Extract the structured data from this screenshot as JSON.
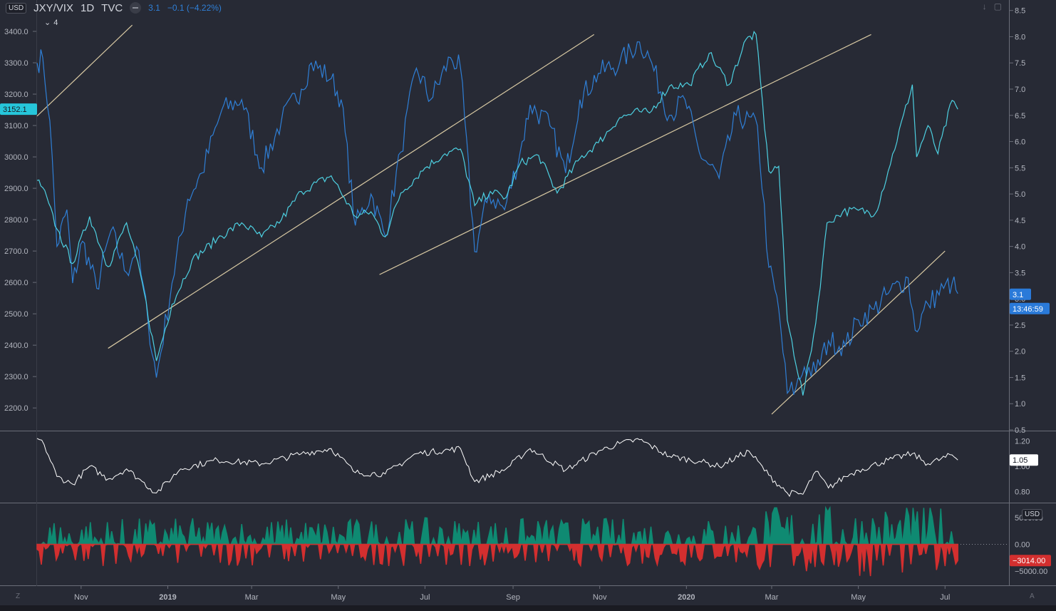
{
  "header": {
    "currency_badge": "USD",
    "symbol": "JXY/VIX",
    "interval": "1D",
    "source": "TVC",
    "last_value": "3.1",
    "change": "−0.1 (−4.22%)",
    "collapse_count": "4"
  },
  "bottom_badge": "USD",
  "corner_left": "Z",
  "corner_right": "A",
  "colors": {
    "background": "#272a35",
    "ratio_line": "#2f7fd6",
    "index_line": "#4dd0e1",
    "trendline": "#d8c9a3",
    "osc_line": "#ffffff",
    "hist_pos": "#0f8a72",
    "hist_neg": "#d32f2f",
    "last_price_tag": "#26c6da",
    "value_tag": "#2a7ad9",
    "neg_tag": "#d32f2f"
  },
  "chart_data": [
    {
      "type": "line",
      "title": "JXY/VIX",
      "x_ticks": [
        "Nov",
        "2019",
        "Mar",
        "May",
        "Jul",
        "Sep",
        "Nov",
        "2020",
        "Mar",
        "May",
        "Jul"
      ],
      "x_range": [
        "2018-10-01",
        "2020-08-15"
      ],
      "left_axis": {
        "ticks": [
          2200,
          2300,
          2400,
          2500,
          2600,
          2700,
          2800,
          2900,
          3000,
          3100,
          3200,
          3300,
          3400
        ],
        "range": [
          2130,
          3500
        ]
      },
      "right_axis": {
        "ticks": [
          0.5,
          1.0,
          1.5,
          2.0,
          2.5,
          3.0,
          3.5,
          4.0,
          4.5,
          5.0,
          5.5,
          6.0,
          6.5,
          7.0,
          7.5,
          8.0,
          8.5
        ],
        "range": [
          0.5,
          8.7
        ]
      },
      "series": [
        {
          "axis": "right",
          "points": [
            [
              "2018-10-01",
              7.5
            ],
            [
              "2018-10-05",
              7.6
            ],
            [
              "2018-10-10",
              6.4
            ],
            [
              "2018-10-15",
              4.0
            ],
            [
              "2018-10-22",
              4.7
            ],
            [
              "2018-10-26",
              3.3
            ],
            [
              "2018-11-02",
              4.1
            ],
            [
              "2018-11-12",
              3.2
            ],
            [
              "2018-11-22",
              4.3
            ],
            [
              "2018-12-03",
              3.5
            ],
            [
              "2018-12-10",
              4.0
            ],
            [
              "2018-12-18",
              2.6
            ],
            [
              "2018-12-24",
              1.5
            ],
            [
              "2019-01-04",
              3.3
            ],
            [
              "2019-01-15",
              4.9
            ],
            [
              "2019-01-25",
              5.4
            ],
            [
              "2019-02-08",
              6.6
            ],
            [
              "2019-02-22",
              6.8
            ],
            [
              "2019-03-08",
              5.5
            ],
            [
              "2019-03-22",
              6.4
            ],
            [
              "2019-04-05",
              7.0
            ],
            [
              "2019-04-12",
              7.5
            ],
            [
              "2019-04-26",
              7.2
            ],
            [
              "2019-05-03",
              6.8
            ],
            [
              "2019-05-13",
              4.4
            ],
            [
              "2019-05-24",
              5.0
            ],
            [
              "2019-06-03",
              4.2
            ],
            [
              "2019-06-14",
              5.8
            ],
            [
              "2019-06-25",
              7.4
            ],
            [
              "2019-07-05",
              6.8
            ],
            [
              "2019-07-19",
              7.6
            ],
            [
              "2019-07-26",
              7.4
            ],
            [
              "2019-08-05",
              3.9
            ],
            [
              "2019-08-15",
              5.0
            ],
            [
              "2019-08-26",
              4.7
            ],
            [
              "2019-09-06",
              5.8
            ],
            [
              "2019-09-13",
              6.7
            ],
            [
              "2019-09-27",
              6.3
            ],
            [
              "2019-10-08",
              5.4
            ],
            [
              "2019-10-18",
              6.8
            ],
            [
              "2019-10-31",
              7.3
            ],
            [
              "2019-11-15",
              7.5
            ],
            [
              "2019-11-29",
              7.9
            ],
            [
              "2019-12-06",
              7.6
            ],
            [
              "2019-12-20",
              6.5
            ],
            [
              "2019-12-31",
              6.8
            ],
            [
              "2020-01-10",
              5.8
            ],
            [
              "2020-01-24",
              5.3
            ],
            [
              "2020-02-05",
              6.5
            ],
            [
              "2020-02-20",
              6.3
            ],
            [
              "2020-02-28",
              3.6
            ],
            [
              "2020-03-06",
              2.8
            ],
            [
              "2020-03-12",
              1.2
            ],
            [
              "2020-03-18",
              1.3
            ],
            [
              "2020-03-24",
              1.7
            ],
            [
              "2020-04-01",
              1.6
            ],
            [
              "2020-04-10",
              2.2
            ],
            [
              "2020-04-22",
              2.1
            ],
            [
              "2020-05-01",
              2.6
            ],
            [
              "2020-05-12",
              2.8
            ],
            [
              "2020-05-22",
              3.1
            ],
            [
              "2020-06-05",
              3.4
            ],
            [
              "2020-06-10",
              2.4
            ],
            [
              "2020-06-19",
              2.9
            ],
            [
              "2020-06-30",
              3.2
            ],
            [
              "2020-07-06",
              3.3
            ],
            [
              "2020-07-10",
              3.1
            ]
          ]
        },
        {
          "axis": "left",
          "points": [
            [
              "2018-10-01",
              2925
            ],
            [
              "2018-10-05",
              2902
            ],
            [
              "2018-10-15",
              2770
            ],
            [
              "2018-10-26",
              2660
            ],
            [
              "2018-11-07",
              2810
            ],
            [
              "2018-11-20",
              2650
            ],
            [
              "2018-12-03",
              2790
            ],
            [
              "2018-12-14",
              2600
            ],
            [
              "2018-12-24",
              2350
            ],
            [
              "2019-01-04",
              2530
            ],
            [
              "2019-01-18",
              2670
            ],
            [
              "2019-02-05",
              2740
            ],
            [
              "2019-02-22",
              2790
            ],
            [
              "2019-03-08",
              2745
            ],
            [
              "2019-03-22",
              2800
            ],
            [
              "2019-04-05",
              2890
            ],
            [
              "2019-04-26",
              2940
            ],
            [
              "2019-05-13",
              2810
            ],
            [
              "2019-05-24",
              2825
            ],
            [
              "2019-06-03",
              2745
            ],
            [
              "2019-06-14",
              2885
            ],
            [
              "2019-07-01",
              2965
            ],
            [
              "2019-07-15",
              3010
            ],
            [
              "2019-07-26",
              3025
            ],
            [
              "2019-08-05",
              2845
            ],
            [
              "2019-08-16",
              2890
            ],
            [
              "2019-08-27",
              2870
            ],
            [
              "2019-09-06",
              2980
            ],
            [
              "2019-09-19",
              3005
            ],
            [
              "2019-10-02",
              2885
            ],
            [
              "2019-10-18",
              2995
            ],
            [
              "2019-10-31",
              3045
            ],
            [
              "2019-11-15",
              3125
            ],
            [
              "2019-11-29",
              3145
            ],
            [
              "2019-12-06",
              3140
            ],
            [
              "2019-12-20",
              3225
            ],
            [
              "2020-01-03",
              3230
            ],
            [
              "2020-01-17",
              3330
            ],
            [
              "2020-01-31",
              3230
            ],
            [
              "2020-02-12",
              3375
            ],
            [
              "2020-02-19",
              3390
            ],
            [
              "2020-02-28",
              2955
            ],
            [
              "2020-03-06",
              2970
            ],
            [
              "2020-03-12",
              2480
            ],
            [
              "2020-03-23",
              2240
            ],
            [
              "2020-04-01",
              2470
            ],
            [
              "2020-04-09",
              2790
            ],
            [
              "2020-04-20",
              2825
            ],
            [
              "2020-05-01",
              2830
            ],
            [
              "2020-05-13",
              2820
            ],
            [
              "2020-05-22",
              2955
            ],
            [
              "2020-06-08",
              3230
            ],
            [
              "2020-06-11",
              3000
            ],
            [
              "2020-06-19",
              3100
            ],
            [
              "2020-06-26",
              3010
            ],
            [
              "2020-07-06",
              3180
            ],
            [
              "2020-07-10",
              3152
            ]
          ]
        }
      ],
      "trendlines": [
        [
          [
            "2018-10-01",
            3130
          ],
          [
            "2018-12-07",
            3420
          ]
        ],
        [
          [
            "2018-11-20",
            2390
          ],
          [
            "2019-10-28",
            3390
          ]
        ],
        [
          [
            "2019-05-30",
            2625
          ],
          [
            "2020-05-10",
            3390
          ]
        ],
        [
          [
            "2020-03-01",
            2180
          ],
          [
            "2020-07-01",
            2700
          ]
        ]
      ],
      "left_tag": "3152.1",
      "right_tags": [
        "3.1",
        "13:46:59"
      ]
    },
    {
      "type": "line",
      "axis_ticks": [
        0.8,
        1.0,
        1.2
      ],
      "range": [
        0.72,
        1.27
      ],
      "points": [
        [
          "2018-10-01",
          1.22
        ],
        [
          "2018-10-06",
          1.17
        ],
        [
          "2018-10-15",
          0.92
        ],
        [
          "2018-10-26",
          0.86
        ],
        [
          "2018-11-07",
          1.0
        ],
        [
          "2018-11-20",
          0.9
        ],
        [
          "2018-12-03",
          0.98
        ],
        [
          "2018-12-14",
          0.88
        ],
        [
          "2018-12-24",
          0.79
        ],
        [
          "2019-01-10",
          0.98
        ],
        [
          "2019-02-05",
          1.05
        ],
        [
          "2019-03-08",
          1.02
        ],
        [
          "2019-04-05",
          1.1
        ],
        [
          "2019-04-26",
          1.14
        ],
        [
          "2019-05-13",
          0.95
        ],
        [
          "2019-06-03",
          0.94
        ],
        [
          "2019-06-25",
          1.1
        ],
        [
          "2019-07-26",
          1.14
        ],
        [
          "2019-08-05",
          0.88
        ],
        [
          "2019-08-27",
          0.98
        ],
        [
          "2019-09-13",
          1.14
        ],
        [
          "2019-10-08",
          0.97
        ],
        [
          "2019-10-31",
          1.12
        ],
        [
          "2019-11-15",
          1.18
        ],
        [
          "2019-11-29",
          1.21
        ],
        [
          "2019-12-20",
          1.08
        ],
        [
          "2020-01-10",
          1.04
        ],
        [
          "2020-01-24",
          1.0
        ],
        [
          "2020-02-14",
          1.12
        ],
        [
          "2020-02-28",
          0.93
        ],
        [
          "2020-03-12",
          0.79
        ],
        [
          "2020-03-23",
          0.78
        ],
        [
          "2020-04-01",
          0.96
        ],
        [
          "2020-04-10",
          0.83
        ],
        [
          "2020-04-22",
          0.92
        ],
        [
          "2020-05-01",
          0.97
        ],
        [
          "2020-05-22",
          1.05
        ],
        [
          "2020-06-08",
          1.1
        ],
        [
          "2020-06-19",
          1.02
        ],
        [
          "2020-07-06",
          1.09
        ],
        [
          "2020-07-10",
          1.05
        ]
      ],
      "tag": "1.05"
    },
    {
      "type": "bar",
      "axis_ticks": [
        "5000.00",
        "0.00",
        "−5000.00"
      ],
      "range": [
        -7500,
        7500
      ],
      "last_value": "−3014.00"
    }
  ]
}
